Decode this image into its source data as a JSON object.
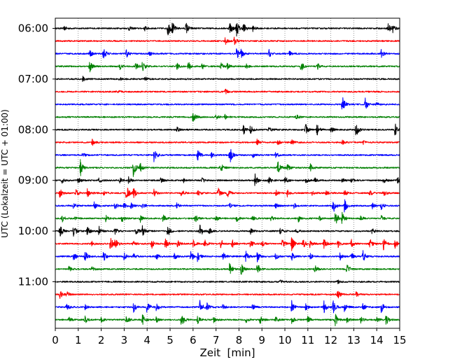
{
  "chart_data": {
    "type": "line",
    "title": "",
    "xlabel": "Zeit  [min]",
    "ylabel": "UTC (Lokalzeit = UTC + 01:00)",
    "xlim": [
      0,
      15
    ],
    "x_ticks": [
      0,
      1,
      2,
      3,
      4,
      5,
      6,
      7,
      8,
      9,
      10,
      11,
      12,
      13,
      14,
      15
    ],
    "y_ticks": [
      "06:00",
      "07:00",
      "08:00",
      "09:00",
      "10:00",
      "11:00"
    ],
    "grid": "vertical dotted",
    "legend": "none",
    "trace_interval_min": 15,
    "trace_colors": [
      "#000000",
      "#ff0000",
      "#0000ff",
      "#008000"
    ],
    "traces": [
      {
        "start": "06:00",
        "events": [
          [
            0.4,
            0.25
          ],
          [
            3.2,
            0.3
          ],
          [
            3.9,
            0.3
          ],
          [
            4.9,
            1.1
          ],
          [
            5.1,
            0.7
          ],
          [
            5.7,
            0.8
          ],
          [
            7.6,
            0.9
          ],
          [
            7.9,
            1.0
          ],
          [
            8.2,
            0.7
          ],
          [
            8.6,
            0.35
          ],
          [
            14.5,
            0.8
          ],
          [
            14.7,
            0.6
          ]
        ]
      },
      {
        "start": "06:15",
        "events": [
          [
            7.4,
            0.5
          ],
          [
            7.8,
            0.5
          ]
        ]
      },
      {
        "start": "06:30",
        "events": [
          [
            1.5,
            0.45
          ],
          [
            2.1,
            0.75
          ],
          [
            3.1,
            0.5
          ],
          [
            4.1,
            0.3
          ],
          [
            7.9,
            0.7
          ],
          [
            8.1,
            0.5
          ],
          [
            9.3,
            0.55
          ],
          [
            10.2,
            0.3
          ],
          [
            14.2,
            0.5
          ]
        ]
      },
      {
        "start": "06:45",
        "events": [
          [
            1.5,
            0.75
          ],
          [
            2.8,
            0.45
          ],
          [
            3.5,
            0.5
          ],
          [
            3.8,
            0.65
          ],
          [
            5.3,
            0.45
          ],
          [
            5.8,
            0.6
          ],
          [
            6.4,
            0.35
          ],
          [
            7.2,
            0.5
          ],
          [
            7.5,
            0.4
          ],
          [
            8.3,
            0.35
          ],
          [
            10.7,
            0.75
          ],
          [
            11.4,
            0.5
          ]
        ]
      },
      {
        "start": "07:00",
        "events": [
          [
            1.2,
            0.3
          ],
          [
            2.8,
            0.25
          ],
          [
            3.9,
            0.3
          ]
        ]
      },
      {
        "start": "07:15",
        "events": [
          [
            2.7,
            0.25
          ],
          [
            7.4,
            0.35
          ]
        ]
      },
      {
        "start": "07:30",
        "events": [
          [
            12.5,
            1.1
          ],
          [
            13.5,
            0.8
          ],
          [
            14.0,
            0.3
          ]
        ]
      },
      {
        "start": "07:45",
        "events": [
          [
            6.0,
            0.85
          ],
          [
            7.0,
            0.35
          ],
          [
            7.4,
            0.3
          ],
          [
            10.5,
            0.3
          ]
        ]
      },
      {
        "start": "08:00",
        "events": [
          [
            5.3,
            0.3
          ],
          [
            8.2,
            0.7
          ],
          [
            8.5,
            0.6
          ],
          [
            9.3,
            0.35
          ],
          [
            10.9,
            0.75
          ],
          [
            11.4,
            0.7
          ],
          [
            12.0,
            0.5
          ],
          [
            13.1,
            1.0
          ],
          [
            14.8,
            0.9
          ]
        ]
      },
      {
        "start": "08:15",
        "events": [
          [
            1.6,
            0.45
          ],
          [
            8.8,
            0.45
          ],
          [
            9.7,
            0.3
          ],
          [
            10.3,
            0.35
          ],
          [
            12.5,
            0.3
          ],
          [
            13.4,
            0.25
          ]
        ]
      },
      {
        "start": "08:30",
        "events": [
          [
            1.2,
            0.35
          ],
          [
            4.3,
            1.1
          ],
          [
            6.2,
            0.75
          ],
          [
            6.8,
            0.4
          ],
          [
            7.6,
            1.2
          ],
          [
            8.6,
            0.35
          ],
          [
            9.6,
            0.4
          ]
        ]
      },
      {
        "start": "08:45",
        "events": [
          [
            1.1,
            1.3
          ],
          [
            3.4,
            1.1
          ],
          [
            3.7,
            0.6
          ],
          [
            7.2,
            0.7
          ],
          [
            9.7,
            0.8
          ],
          [
            10.1,
            0.5
          ],
          [
            11.1,
            0.6
          ]
        ]
      },
      {
        "start": "09:00",
        "events": [
          [
            0.3,
            0.3
          ],
          [
            1.0,
            0.4
          ],
          [
            1.9,
            0.35
          ],
          [
            2.8,
            0.4
          ],
          [
            3.2,
            0.45
          ],
          [
            4.6,
            0.35
          ],
          [
            5.6,
            0.3
          ],
          [
            6.4,
            0.3
          ],
          [
            8.7,
            0.85
          ],
          [
            9.3,
            0.45
          ],
          [
            10.0,
            0.55
          ],
          [
            10.9,
            0.4
          ],
          [
            11.3,
            0.3
          ],
          [
            12.5,
            0.3
          ],
          [
            12.9,
            0.3
          ],
          [
            14.3,
            0.35
          ],
          [
            14.9,
            0.55
          ]
        ]
      },
      {
        "start": "09:15",
        "events": [
          [
            0.2,
            0.6
          ],
          [
            0.9,
            0.45
          ],
          [
            1.4,
            0.55
          ],
          [
            2.1,
            0.3
          ],
          [
            3.1,
            1.0
          ],
          [
            3.4,
            0.75
          ],
          [
            4.3,
            0.45
          ],
          [
            5.5,
            0.5
          ],
          [
            6.2,
            0.45
          ],
          [
            7.1,
            0.6
          ],
          [
            7.5,
            0.55
          ],
          [
            9.6,
            0.4
          ],
          [
            10.1,
            0.45
          ],
          [
            11.2,
            0.3
          ],
          [
            11.8,
            0.35
          ],
          [
            12.6,
            0.4
          ],
          [
            13.7,
            0.4
          ],
          [
            14.3,
            0.45
          ]
        ]
      },
      {
        "start": "09:30",
        "events": [
          [
            0.8,
            0.45
          ],
          [
            1.7,
            0.5
          ],
          [
            2.6,
            0.4
          ],
          [
            3.0,
            0.35
          ],
          [
            3.3,
            0.4
          ],
          [
            3.8,
            0.45
          ],
          [
            5.3,
            0.35
          ],
          [
            7.6,
            0.4
          ],
          [
            9.6,
            0.3
          ],
          [
            10.4,
            0.35
          ],
          [
            12.1,
            1.2
          ],
          [
            12.6,
            0.9
          ],
          [
            13.8,
            0.4
          ],
          [
            14.2,
            0.45
          ]
        ]
      },
      {
        "start": "09:45",
        "events": [
          [
            0.3,
            0.45
          ],
          [
            0.8,
            0.35
          ],
          [
            2.2,
            0.4
          ],
          [
            2.9,
            0.45
          ],
          [
            3.7,
            0.5
          ],
          [
            4.7,
            0.5
          ],
          [
            6.1,
            0.5
          ],
          [
            7.0,
            0.35
          ],
          [
            7.9,
            0.4
          ],
          [
            8.6,
            0.3
          ],
          [
            9.4,
            0.35
          ],
          [
            10.6,
            0.5
          ],
          [
            11.5,
            0.3
          ],
          [
            12.2,
            1.0
          ],
          [
            12.5,
            0.8
          ],
          [
            13.3,
            0.4
          ],
          [
            14.2,
            0.35
          ]
        ]
      },
      {
        "start": "10:00",
        "events": [
          [
            0.2,
            0.8
          ],
          [
            0.8,
            0.85
          ],
          [
            1.4,
            0.75
          ],
          [
            1.9,
            0.6
          ],
          [
            2.6,
            0.55
          ],
          [
            3.5,
            0.6
          ],
          [
            3.8,
            0.7
          ],
          [
            4.9,
            0.7
          ],
          [
            6.3,
            0.95
          ],
          [
            6.7,
            0.45
          ],
          [
            8.5,
            0.4
          ],
          [
            9.8,
            0.4
          ],
          [
            10.5,
            0.35
          ],
          [
            13.8,
            0.35
          ]
        ]
      },
      {
        "start": "10:15",
        "events": [
          [
            1.6,
            0.4
          ],
          [
            2.4,
            1.0
          ],
          [
            2.6,
            0.7
          ],
          [
            3.4,
            0.35
          ],
          [
            4.2,
            0.6
          ],
          [
            4.8,
            0.7
          ],
          [
            5.3,
            0.6
          ],
          [
            6.0,
            0.5
          ],
          [
            6.5,
            0.6
          ],
          [
            7.2,
            0.7
          ],
          [
            7.7,
            0.55
          ],
          [
            8.5,
            0.55
          ],
          [
            9.0,
            0.5
          ],
          [
            9.9,
            0.8
          ],
          [
            10.3,
            1.0
          ],
          [
            10.8,
            0.6
          ],
          [
            11.1,
            0.5
          ],
          [
            11.7,
            0.7
          ],
          [
            12.3,
            0.6
          ],
          [
            12.9,
            0.5
          ],
          [
            13.7,
            0.65
          ],
          [
            14.3,
            0.8
          ],
          [
            14.8,
            0.6
          ]
        ]
      },
      {
        "start": "10:30",
        "events": [
          [
            0.8,
            0.5
          ],
          [
            1.3,
            0.7
          ],
          [
            2.1,
            0.7
          ],
          [
            3.0,
            0.5
          ],
          [
            3.4,
            0.4
          ],
          [
            4.4,
            0.5
          ],
          [
            5.2,
            0.45
          ],
          [
            5.9,
            0.8
          ],
          [
            6.2,
            0.6
          ],
          [
            7.3,
            0.6
          ],
          [
            8.3,
            0.85
          ],
          [
            8.8,
            0.65
          ],
          [
            9.6,
            0.45
          ],
          [
            10.3,
            0.5
          ],
          [
            11.1,
            0.4
          ],
          [
            12.4,
            0.45
          ],
          [
            12.9,
            0.45
          ],
          [
            13.4,
            0.75
          ]
        ]
      },
      {
        "start": "10:45",
        "events": [
          [
            0.6,
            0.4
          ],
          [
            1.6,
            0.3
          ],
          [
            7.6,
            0.85
          ],
          [
            8.1,
            0.7
          ],
          [
            8.8,
            0.8
          ],
          [
            11.3,
            0.6
          ],
          [
            12.7,
            0.75
          ]
        ]
      },
      {
        "start": "11:00",
        "events": [
          [
            9.8,
            0.25
          ],
          [
            12.3,
            0.2
          ]
        ]
      },
      {
        "start": "11:15",
        "events": [
          [
            0.2,
            0.55
          ],
          [
            0.5,
            0.4
          ],
          [
            12.3,
            0.55
          ],
          [
            13.1,
            0.35
          ]
        ]
      },
      {
        "start": "11:30",
        "events": [
          [
            0.5,
            0.4
          ],
          [
            1.3,
            0.3
          ],
          [
            3.4,
            0.75
          ],
          [
            4.0,
            0.85
          ],
          [
            4.4,
            0.45
          ],
          [
            6.3,
            0.95
          ],
          [
            6.6,
            0.5
          ],
          [
            7.3,
            0.4
          ],
          [
            8.6,
            0.4
          ],
          [
            10.3,
            0.85
          ],
          [
            10.9,
            0.5
          ],
          [
            11.7,
            0.8
          ],
          [
            12.1,
            0.85
          ],
          [
            12.6,
            0.6
          ],
          [
            13.4,
            0.5
          ],
          [
            14.2,
            0.7
          ]
        ]
      },
      {
        "start": "11:45",
        "events": [
          [
            0.6,
            0.3
          ],
          [
            1.3,
            0.45
          ],
          [
            2.0,
            0.35
          ],
          [
            3.1,
            0.5
          ],
          [
            3.8,
            0.8
          ],
          [
            4.4,
            0.4
          ],
          [
            5.5,
            1.0
          ],
          [
            6.2,
            0.55
          ],
          [
            6.9,
            0.35
          ],
          [
            8.3,
            0.35
          ],
          [
            8.9,
            0.6
          ],
          [
            9.6,
            0.35
          ],
          [
            10.3,
            0.5
          ],
          [
            11.0,
            0.45
          ],
          [
            12.2,
            0.9
          ],
          [
            12.7,
            0.35
          ],
          [
            13.3,
            0.4
          ],
          [
            14.0,
            0.4
          ],
          [
            14.4,
            0.75
          ]
        ]
      }
    ]
  }
}
